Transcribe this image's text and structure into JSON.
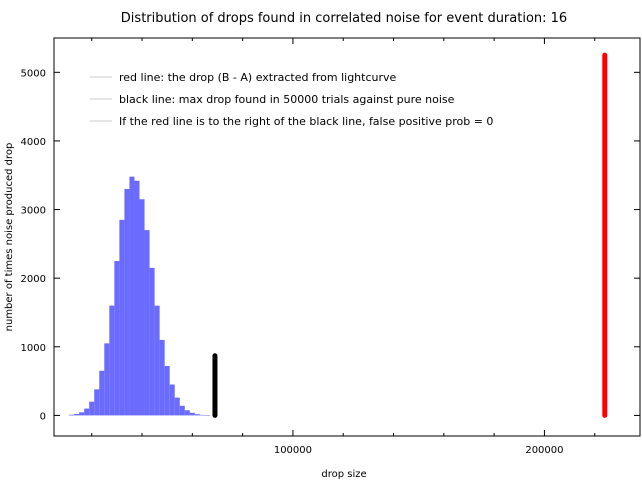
{
  "chart_data": {
    "type": "bar",
    "title": "Distribution of drops found in correlated noise for event duration: 16",
    "xlabel": "drop size",
    "ylabel": "number of times noise produced drop",
    "xlim": [
      5000,
      238000
    ],
    "ylim": [
      -300,
      5500
    ],
    "x_ticks": [
      {
        "value": 100000,
        "label": "100000"
      },
      {
        "value": 200000,
        "label": "200000"
      }
    ],
    "x_minor_ticks": [
      20000,
      40000,
      60000,
      80000,
      120000,
      140000,
      160000,
      180000,
      220000
    ],
    "y_ticks": [
      {
        "value": 0,
        "label": "0"
      },
      {
        "value": 1000,
        "label": "1000"
      },
      {
        "value": 2000,
        "label": "2000"
      },
      {
        "value": 3000,
        "label": "3000"
      },
      {
        "value": 4000,
        "label": "4000"
      },
      {
        "value": 5000,
        "label": "5000"
      }
    ],
    "histogram": {
      "color": "#6b6bff",
      "bin_width": 2000,
      "bins": [
        {
          "x": 12000,
          "y": 10
        },
        {
          "x": 14000,
          "y": 20
        },
        {
          "x": 16000,
          "y": 45
        },
        {
          "x": 18000,
          "y": 100
        },
        {
          "x": 20000,
          "y": 200
        },
        {
          "x": 22000,
          "y": 380
        },
        {
          "x": 24000,
          "y": 650
        },
        {
          "x": 26000,
          "y": 1050
        },
        {
          "x": 28000,
          "y": 1600
        },
        {
          "x": 30000,
          "y": 2250
        },
        {
          "x": 32000,
          "y": 2850
        },
        {
          "x": 34000,
          "y": 3300
        },
        {
          "x": 36000,
          "y": 3480
        },
        {
          "x": 38000,
          "y": 3420
        },
        {
          "x": 40000,
          "y": 3150
        },
        {
          "x": 42000,
          "y": 2700
        },
        {
          "x": 44000,
          "y": 2150
        },
        {
          "x": 46000,
          "y": 1600
        },
        {
          "x": 48000,
          "y": 1100
        },
        {
          "x": 50000,
          "y": 720
        },
        {
          "x": 52000,
          "y": 450
        },
        {
          "x": 54000,
          "y": 260
        },
        {
          "x": 56000,
          "y": 140
        },
        {
          "x": 58000,
          "y": 75
        },
        {
          "x": 60000,
          "y": 38
        },
        {
          "x": 62000,
          "y": 18
        },
        {
          "x": 64000,
          "y": 8
        },
        {
          "x": 66000,
          "y": 3
        }
      ]
    },
    "lines": [
      {
        "color": "#ff0000",
        "x": 224000,
        "y_start": 0,
        "y_end": 5250
      },
      {
        "color": "#000000",
        "x": 69000,
        "y_start": 0,
        "y_end": 870
      }
    ],
    "legend": {
      "placement": "top-left",
      "entries": [
        {
          "label": "red line: the drop (B - A) extracted from lightcurve",
          "color": "#cccccc"
        },
        {
          "label": "black line: max drop found in 50000 trials against pure noise",
          "color": "#cccccc"
        },
        {
          "label": "If the red line is to the right of the black line, false positive prob = 0",
          "color": "#cccccc"
        }
      ]
    }
  }
}
